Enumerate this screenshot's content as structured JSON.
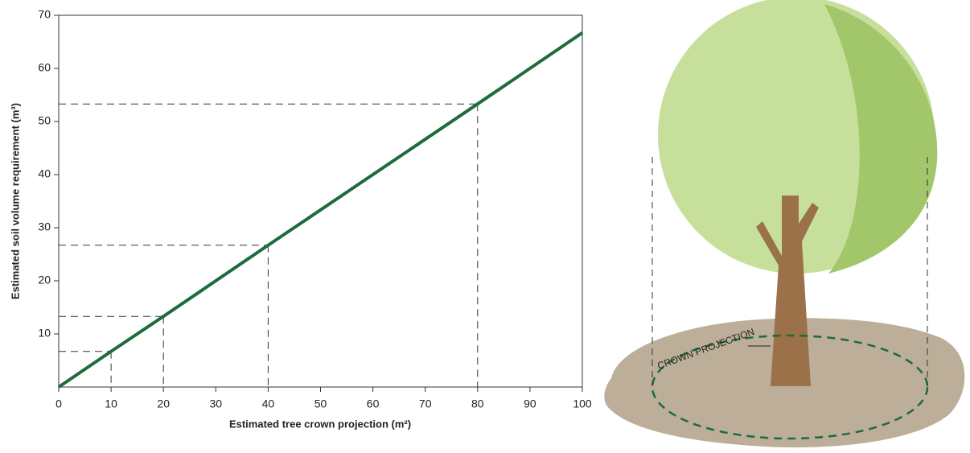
{
  "chart_data": {
    "type": "line",
    "x_label": "Estimated tree crown projection (m²)",
    "y_label": "Estimated soil volume requirement (m³)",
    "x": [
      0,
      10,
      20,
      40,
      80,
      100
    ],
    "values": [
      0,
      6.7,
      13.3,
      26.7,
      53.3,
      66.7
    ],
    "color": "#1e6b3c",
    "xlim": [
      0,
      100
    ],
    "xticks": [
      0,
      10,
      20,
      30,
      40,
      50,
      60,
      70,
      80,
      90,
      100
    ],
    "ylim": [
      0,
      70
    ],
    "yticks": [
      10,
      20,
      30,
      40,
      50,
      60,
      70
    ]
  },
  "illustration": {
    "label": "CROWN PROJECTION"
  }
}
